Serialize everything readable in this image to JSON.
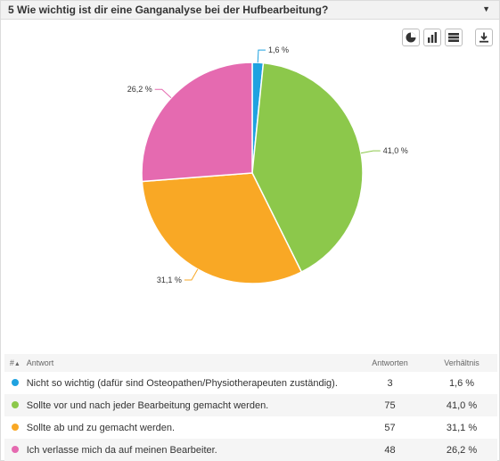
{
  "header": {
    "title": "5 Wie wichtig ist dir eine Ganganalyse bei der Hufbearbeitung?",
    "caret_icon": "caret-down-icon"
  },
  "toolbar": {
    "icons": [
      "pie-chart-icon",
      "bar-chart-icon",
      "table-icon",
      "download-icon"
    ]
  },
  "chart_data": {
    "type": "pie",
    "title": "",
    "labels": [
      "Nicht so wichtig (dafür sind Osteopathen/Physiotherapeuten zuständig).",
      "Sollte vor und nach jeder Bearbeitung gemacht werden.",
      "Sollte ab und zu gemacht werden.",
      "Ich verlasse mich da auf meinen Bearbeiter."
    ],
    "values": [
      1.6,
      41.0,
      31.1,
      26.2
    ],
    "value_labels": [
      "1,6 %",
      "41,0 %",
      "31,1 %",
      "26,2 %"
    ],
    "colors": [
      "#1fa2e0",
      "#8cc84b",
      "#f9a825",
      "#e56ab0"
    ]
  },
  "table": {
    "headers": {
      "num": "#",
      "answer": "Antwort",
      "count": "Antworten",
      "ratio": "Verhältnis"
    },
    "sort_icon": "sort-asc-icon",
    "rows": [
      {
        "answer": "Nicht so wichtig (dafür sind Osteopathen/Physiotherapeuten zuständig).",
        "count": "3",
        "ratio": "1,6 %",
        "color": "#1fa2e0"
      },
      {
        "answer": "Sollte vor und nach jeder Bearbeitung gemacht werden.",
        "count": "75",
        "ratio": "41,0 %",
        "color": "#8cc84b"
      },
      {
        "answer": "Sollte ab und zu gemacht werden.",
        "count": "57",
        "ratio": "31,1 %",
        "color": "#f9a825"
      },
      {
        "answer": "Ich verlasse mich da auf meinen Bearbeiter.",
        "count": "48",
        "ratio": "26,2 %",
        "color": "#e56ab0"
      }
    ]
  }
}
